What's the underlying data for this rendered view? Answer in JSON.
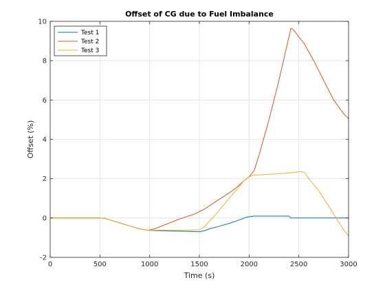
{
  "chart_data": {
    "type": "line",
    "title": "Offset of CG due to Fuel Imbalance",
    "xlabel": "Time (s)",
    "ylabel": "Offset (%)",
    "xlim": [
      0,
      3000
    ],
    "ylim": [
      -2,
      10
    ],
    "xticks": [
      0,
      500,
      1000,
      1500,
      2000,
      2500,
      3000
    ],
    "yticks": [
      -2,
      0,
      2,
      4,
      6,
      8,
      10
    ],
    "grid": true,
    "legend_position": "top-left",
    "series": [
      {
        "name": "Test 1",
        "color": "#0072BD",
        "points": [
          [
            0,
            0
          ],
          [
            500,
            0
          ],
          [
            550,
            -0.02
          ],
          [
            600,
            -0.1
          ],
          [
            700,
            -0.25
          ],
          [
            800,
            -0.4
          ],
          [
            900,
            -0.55
          ],
          [
            980,
            -0.62
          ],
          [
            1050,
            -0.64
          ],
          [
            1100,
            -0.65
          ],
          [
            1200,
            -0.66
          ],
          [
            1300,
            -0.67
          ],
          [
            1400,
            -0.68
          ],
          [
            1500,
            -0.7
          ],
          [
            1550,
            -0.65
          ],
          [
            1600,
            -0.55
          ],
          [
            1700,
            -0.42
          ],
          [
            1800,
            -0.27
          ],
          [
            1900,
            -0.1
          ],
          [
            1980,
            0.05
          ],
          [
            2050,
            0.1
          ],
          [
            2200,
            0.1
          ],
          [
            2300,
            0.1
          ],
          [
            2400,
            0.1
          ],
          [
            2420,
            0.0
          ],
          [
            2500,
            0.0
          ],
          [
            3000,
            0.0
          ]
        ]
      },
      {
        "name": "Test 2",
        "color": "#D95319",
        "points": [
          [
            0,
            0
          ],
          [
            500,
            0
          ],
          [
            550,
            -0.02
          ],
          [
            600,
            -0.1
          ],
          [
            700,
            -0.25
          ],
          [
            800,
            -0.4
          ],
          [
            900,
            -0.55
          ],
          [
            980,
            -0.62
          ],
          [
            1050,
            -0.55
          ],
          [
            1150,
            -0.35
          ],
          [
            1300,
            -0.05
          ],
          [
            1450,
            0.2
          ],
          [
            1550,
            0.45
          ],
          [
            1700,
            0.95
          ],
          [
            1850,
            1.45
          ],
          [
            1950,
            1.9
          ],
          [
            2000,
            2.1
          ],
          [
            2050,
            2.4
          ],
          [
            2100,
            3.2
          ],
          [
            2200,
            5.0
          ],
          [
            2300,
            7.0
          ],
          [
            2400,
            9.2
          ],
          [
            2420,
            9.65
          ],
          [
            2450,
            9.55
          ],
          [
            2500,
            9.2
          ],
          [
            2550,
            8.9
          ],
          [
            2650,
            8.0
          ],
          [
            2750,
            7.0
          ],
          [
            2850,
            6.0
          ],
          [
            2950,
            5.3
          ],
          [
            3000,
            5.05
          ]
        ]
      },
      {
        "name": "Test 3",
        "color": "#EDB120",
        "points": [
          [
            0,
            0
          ],
          [
            500,
            0
          ],
          [
            550,
            -0.02
          ],
          [
            600,
            -0.1
          ],
          [
            700,
            -0.25
          ],
          [
            800,
            -0.4
          ],
          [
            900,
            -0.55
          ],
          [
            980,
            -0.62
          ],
          [
            1050,
            -0.62
          ],
          [
            1200,
            -0.62
          ],
          [
            1350,
            -0.62
          ],
          [
            1500,
            -0.6
          ],
          [
            1550,
            -0.45
          ],
          [
            1650,
            0.1
          ],
          [
            1750,
            0.7
          ],
          [
            1850,
            1.3
          ],
          [
            1950,
            1.9
          ],
          [
            2000,
            2.1
          ],
          [
            2050,
            2.18
          ],
          [
            2200,
            2.22
          ],
          [
            2350,
            2.27
          ],
          [
            2450,
            2.32
          ],
          [
            2520,
            2.36
          ],
          [
            2560,
            2.3
          ],
          [
            2600,
            2.0
          ],
          [
            2700,
            1.4
          ],
          [
            2800,
            0.6
          ],
          [
            2900,
            -0.2
          ],
          [
            2950,
            -0.6
          ],
          [
            3000,
            -0.9
          ]
        ]
      }
    ]
  }
}
